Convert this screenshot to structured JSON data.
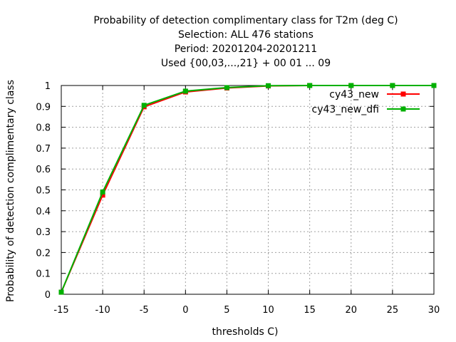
{
  "chart_data": {
    "type": "line",
    "title_lines": [
      "Probability of detection complimentary class  for T2m (deg C)",
      "Selection: ALL    476 stations",
      "Period: 20201204-20201211",
      "Used {00,03,...,21} + 00 01 ... 09"
    ],
    "xlabel": "thresholds C)",
    "ylabel": "Probability of detection complimentary class",
    "xlim": [
      -15,
      30
    ],
    "ylim": [
      0,
      1
    ],
    "x_ticks": [
      -15,
      -10,
      -5,
      0,
      5,
      10,
      15,
      20,
      25,
      30
    ],
    "y_ticks": [
      "0",
      "0.1",
      "0.2",
      "0.3",
      "0.4",
      "0.5",
      "0.6",
      "0.7",
      "0.8",
      "0.9",
      "1"
    ],
    "grid": true,
    "legend_position": "top-right",
    "x": [
      -15,
      -10,
      -5,
      0,
      5,
      10,
      15,
      20,
      25,
      30
    ],
    "series": [
      {
        "name": "cy43_new",
        "color": "#ff0000",
        "values": [
          0.01,
          0.475,
          0.898,
          0.969,
          0.988,
          0.998,
          1.0,
          1.0,
          1.0,
          1.0
        ]
      },
      {
        "name": "cy43_new_dfi",
        "color": "#00b000",
        "values": [
          0.01,
          0.49,
          0.905,
          0.973,
          0.99,
          0.999,
          1.0,
          1.0,
          1.0,
          1.0
        ]
      }
    ]
  }
}
